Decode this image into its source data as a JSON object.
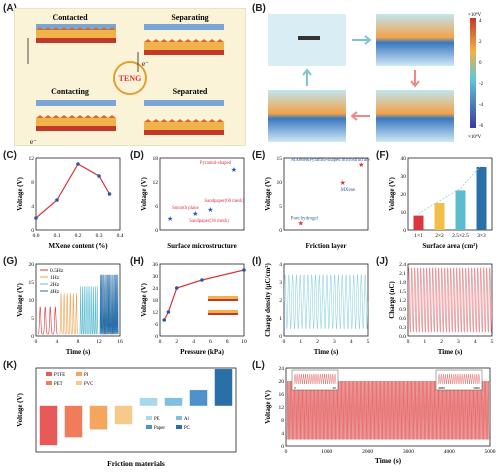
{
  "panel_labels": [
    "(A)",
    "(B)",
    "(C)",
    "(D)",
    "(E)",
    "(F)",
    "(G)",
    "(H)",
    "(I)",
    "(J)",
    "(K)",
    "(L)"
  ],
  "panelA": {
    "contacted": "Contacted",
    "separating": "Separating",
    "contacting": "Contacting",
    "separated": "Separated",
    "teng": "TENG",
    "e_minus": "e⁻"
  },
  "panelB": {
    "cb_top": "×10⁴V",
    "cb_bottom": "×10⁴V",
    "cb_ticks": [
      "4",
      "2",
      "0",
      "-2",
      "-4",
      "-6"
    ]
  },
  "chart_data": [
    {
      "id": "C",
      "type": "line",
      "xlabel": "MXene content (%)",
      "ylabel": "Voltage (V)",
      "x": [
        0.0,
        0.1,
        0.2,
        0.3,
        0.35
      ],
      "values": [
        2,
        5,
        11,
        9,
        6
      ],
      "xticks": [
        "0.0",
        "0.1",
        "0.2",
        "0.3",
        "0.4"
      ],
      "yticks": [
        "0",
        "4",
        "8",
        "12"
      ],
      "xlim": [
        0,
        0.4
      ],
      "ylim": [
        0,
        12
      ],
      "color": "#d9363e"
    },
    {
      "id": "D",
      "type": "scatter",
      "xlabel": "Surface microstructure",
      "ylabel": "Voltage (V)",
      "points": [
        {
          "label": "Smooth plane",
          "value": 2.7
        },
        {
          "label": "Sandpaper(36 mesh)",
          "value": 4.0
        },
        {
          "label": "Sandpaper(60 mesh)",
          "value": 5.0
        },
        {
          "label": "Pyramid-shaped",
          "value": 15.0
        }
      ],
      "yticks": [
        "0",
        "6",
        "12",
        "18"
      ],
      "ylim": [
        0,
        18
      ],
      "color": "#2a5aa6",
      "label_color": "#d9363e"
    },
    {
      "id": "E",
      "type": "scatter",
      "xlabel": "Friction layer",
      "ylabel": "Voltage (V)",
      "points": [
        {
          "label": "Pure hydrogel",
          "value": 1.5
        },
        {
          "label": "MXene",
          "value": 10.5
        },
        {
          "label": "MXene&Pyramid-shaped microstructure",
          "value": 14.5
        }
      ],
      "yticks": [
        "0",
        "5",
        "10",
        "15"
      ],
      "ylim": [
        0,
        16
      ],
      "color": "#d9363e",
      "label_color": "#2a5aa6"
    },
    {
      "id": "F",
      "type": "bar",
      "xlabel": "Surface area (cm²)",
      "ylabel": "Voltage (V)",
      "categories": [
        "1×1",
        "2×2",
        "2.5×2.5",
        "3×3"
      ],
      "values": [
        8,
        15,
        22,
        35
      ],
      "colors": [
        "#d9363e",
        "#f2c04a",
        "#5cbccf",
        "#2a6fa8"
      ],
      "yticks": [
        "0",
        "10",
        "20",
        "30",
        "40"
      ],
      "ylim": [
        0,
        40
      ]
    },
    {
      "id": "G",
      "type": "line",
      "xlabel": "Time (s)",
      "ylabel": "Voltage (V)",
      "series": [
        {
          "name": "0.5Hz",
          "color": "#d9363e"
        },
        {
          "name": "1Hz",
          "color": "#f0a04a"
        },
        {
          "name": "2Hz",
          "color": "#5cbccf"
        },
        {
          "name": "4Hz",
          "color": "#2a6fa8"
        }
      ],
      "xticks": [
        "0",
        "4",
        "8",
        "12",
        "16"
      ],
      "yticks": [
        "0",
        "5",
        "10",
        "15",
        "20"
      ],
      "xlim": [
        0,
        16
      ],
      "ylim": [
        0,
        20
      ]
    },
    {
      "id": "H",
      "type": "line",
      "xlabel": "Pressure (kPa)",
      "ylabel": "Voltage (V)",
      "x": [
        0.5,
        1,
        2,
        5,
        10
      ],
      "values": [
        8,
        12,
        24,
        28,
        33
      ],
      "xticks": [
        "0",
        "2",
        "4",
        "6",
        "8",
        "10"
      ],
      "yticks": [
        "0",
        "6",
        "12",
        "18",
        "24",
        "30",
        "36"
      ],
      "xlim": [
        0,
        10
      ],
      "ylim": [
        0,
        36
      ],
      "color": "#d9363e"
    },
    {
      "id": "I",
      "type": "line",
      "xlabel": "Time (s)",
      "ylabel": "Charge density (μC/cm²)",
      "xticks": [
        "0",
        "1",
        "2",
        "3",
        "4",
        "5"
      ],
      "yticks": [
        "0",
        "1",
        "2",
        "3",
        "4"
      ],
      "xlim": [
        0,
        5
      ],
      "ylim": [
        0,
        4
      ],
      "color": "#5cbccf"
    },
    {
      "id": "J",
      "type": "line",
      "xlabel": "Time (s)",
      "ylabel": "Charge (nC)",
      "xticks": [
        "0",
        "1",
        "2",
        "3",
        "4",
        "5"
      ],
      "yticks": [
        "0.0",
        "0.3",
        "0.6",
        "0.9",
        "1.2",
        "1.5",
        "1.8",
        "2.1",
        "2.4"
      ],
      "xlim": [
        0,
        5
      ],
      "ylim": [
        0,
        2.4
      ],
      "color": "#d9363e"
    },
    {
      "id": "K",
      "type": "bar",
      "xlabel": "Friction materials",
      "ylabel": "Voltage (V)",
      "categories": [
        "PTFE",
        "PET",
        "PI",
        "PVC",
        "PE",
        "Al",
        "Paper",
        "PC"
      ],
      "values": [
        -15,
        -12,
        -9,
        -7,
        3,
        3,
        6,
        14
      ],
      "colors": [
        "#e85a5a",
        "#f07c5a",
        "#f4a65e",
        "#f7c98a",
        "#a8d8ec",
        "#7fc0e0",
        "#4f92c9",
        "#2a6fa8"
      ],
      "legend": [
        "PTFE",
        "PI",
        "PET",
        "PVC",
        "PE",
        "Al",
        "Paper",
        "PC"
      ]
    },
    {
      "id": "L",
      "type": "line",
      "xlabel": "Time (s)",
      "ylabel": "Voltage (V)",
      "xticks": [
        "0",
        "1000",
        "2000",
        "3000",
        "4000",
        "5000"
      ],
      "yticks": [
        "0",
        "4",
        "8",
        "12",
        "16",
        "20",
        "24"
      ],
      "xlim": [
        0,
        5000
      ],
      "ylim": [
        0,
        24
      ],
      "color": "#e04a4a",
      "inset_left": {
        "xticks": [
          "0",
          "30"
        ]
      },
      "inset_right": {
        "xticks": [
          "4980",
          "5000"
        ]
      }
    }
  ]
}
